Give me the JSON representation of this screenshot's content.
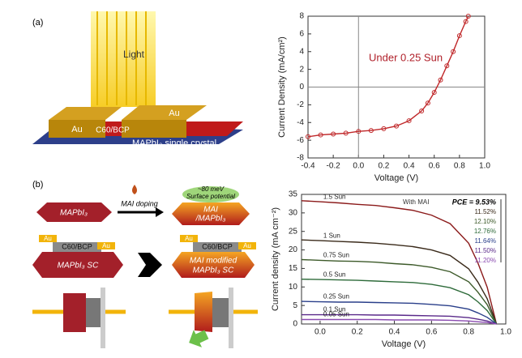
{
  "panel_a": {
    "label": "(a)",
    "light": "Light",
    "au_left": "Au",
    "middle": "C60/BCP",
    "au_right": "Au",
    "crystal": "MAPbI₃ single crystal"
  },
  "panel_b": {
    "label": "(b)",
    "crystal": "MAPbI₃",
    "doping": "MAI doping",
    "potential_1": "~80 meV",
    "potential_2": "Surface potential",
    "doped_1": "MAI",
    "doped_2": "/MAPbI₃",
    "device_left": {
      "au_left": "Au",
      "middle": "C60/BCP",
      "au_right": "Au",
      "sc": "MAPbI₃ SC"
    },
    "device_right": {
      "au_left": "Au",
      "middle": "C60/BCP",
      "au_right": "Au",
      "sc_1": "MAI modified",
      "sc_2": "MAPbI₃ SC"
    }
  },
  "chart_data": [
    {
      "type": "line",
      "markers": true,
      "zero_lines": true,
      "color": "#c0282a",
      "annotation": "Under 0.25 Sun",
      "annotation_color": "#b0202a",
      "xlabel": "Voltage (V)",
      "ylabel": "Current Density (mA/cm²)",
      "x": [
        -0.4,
        -0.3,
        -0.2,
        -0.1,
        0,
        0.1,
        0.2,
        0.3,
        0.4,
        0.5,
        0.55,
        0.6,
        0.65,
        0.7,
        0.75,
        0.8,
        0.85,
        0.87
      ],
      "values": [
        -5.6,
        -5.4,
        -5.3,
        -5.2,
        -5.0,
        -4.9,
        -4.7,
        -4.4,
        -3.8,
        -2.7,
        -1.8,
        -0.6,
        0.8,
        2.4,
        4.0,
        5.8,
        7.4,
        8.0
      ],
      "xlim": [
        -0.4,
        1.0
      ],
      "xticks": [
        -0.4,
        -0.2,
        {
          "value": 0,
          "label": "0.0"
        },
        0.2,
        0.4,
        0.6,
        0.8,
        {
          "value": 1,
          "label": "1.0"
        }
      ],
      "ylim": [
        -8,
        8
      ],
      "yticks": [
        -8,
        -6,
        -4,
        -2,
        0,
        2,
        4,
        6,
        8
      ]
    },
    {
      "type": "line",
      "markers": false,
      "zero_lines": false,
      "annotation": "With MAI",
      "annotation_color": "#333",
      "xlabel": "Voltage (V)",
      "ylabel": "Current density (mA cm⁻²)",
      "x": [
        -0.1,
        0,
        0.1,
        0.2,
        0.3,
        0.4,
        0.5,
        0.6,
        0.7,
        0.8,
        0.85,
        0.9,
        0.95
      ],
      "series": [
        {
          "name": "1.5 Sun",
          "color": "#8b1a1a",
          "values": [
            33.3,
            33,
            32.7,
            32.3,
            32,
            31.4,
            30.7,
            29.4,
            27.1,
            21.8,
            16.5,
            9.9,
            0
          ]
        },
        {
          "name": "1 Sun",
          "color": "#3a2a1a",
          "values": [
            22.7,
            22.5,
            22.3,
            22.1,
            21.8,
            21.4,
            20.9,
            20,
            18.5,
            14.9,
            11.3,
            6.8,
            0
          ]
        },
        {
          "name": "0.75 Sun",
          "color": "#3d5a2a",
          "values": [
            17.4,
            17.2,
            17,
            16.9,
            16.7,
            16.3,
            16,
            15.3,
            14.1,
            11.4,
            8.6,
            5.2,
            0
          ]
        },
        {
          "name": "0.5 Sun",
          "color": "#2e6b3a",
          "values": [
            12.1,
            12,
            11.9,
            11.8,
            11.6,
            11.4,
            11.2,
            10.7,
            9.8,
            7.9,
            6,
            3.6,
            0
          ]
        },
        {
          "name": "0.25 Sun",
          "color": "#2a3f8a",
          "values": [
            6.1,
            6,
            5.9,
            5.9,
            5.8,
            5.7,
            5.6,
            5.3,
            4.9,
            4,
            3,
            1.8,
            0
          ]
        },
        {
          "name": "0.1 Sun",
          "color": "#5a2a8a",
          "values": [
            2.5,
            2.5,
            2.5,
            2.5,
            2.4,
            2.4,
            2.3,
            2.2,
            2.1,
            1.7,
            1.3,
            0.8,
            0
          ]
        },
        {
          "name": "0.05 Sun",
          "color": "#8a4ab0",
          "values": [
            1.2,
            1.2,
            1.2,
            1.2,
            1.2,
            1.1,
            1.1,
            1.1,
            1,
            0.8,
            0.6,
            0.4,
            0
          ]
        }
      ],
      "pce_labels": [
        "PCE = 9.53%",
        "11.52%",
        "12.10%",
        "12.76%",
        "11.64%",
        "11.50%",
        "11.20%"
      ],
      "xlim": [
        -0.1,
        1.0
      ],
      "xticks": [
        {
          "value": 0,
          "label": "0.0"
        },
        0.2,
        0.4,
        0.6,
        0.8,
        {
          "value": 1,
          "label": "1.0"
        }
      ],
      "ylim": [
        0,
        35
      ],
      "yticks": [
        0,
        5,
        10,
        15,
        20,
        25,
        30,
        35
      ]
    }
  ]
}
